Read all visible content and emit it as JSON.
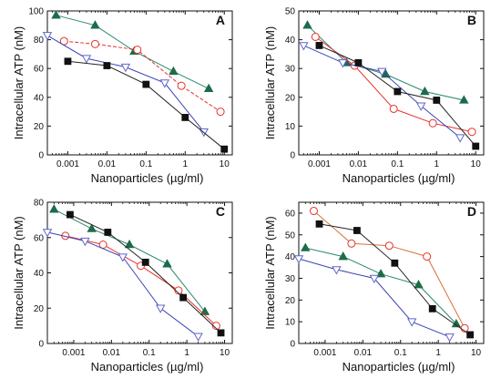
{
  "chart_data": [
    {
      "type": "line",
      "panel": "A",
      "xlabel": "Nanoparticles (µg/ml)",
      "ylabel": "Intracellular ATP (nM)",
      "xscale": "log",
      "xlim": [
        0.0003,
        16
      ],
      "ylim": [
        0,
        100
      ],
      "xticks": [
        0.001,
        0.01,
        0.1,
        1,
        10
      ],
      "xtick_labels": [
        "0.001",
        "0.01",
        "0.1",
        "1",
        "10"
      ],
      "yticks": [
        0,
        20,
        40,
        60,
        80,
        100
      ],
      "ytick_labels": [
        "0",
        "20",
        "40",
        "60",
        "80",
        "100"
      ],
      "series": [
        {
          "color": "#1e6b4a",
          "line": "#2a8a70",
          "marker": "triangle-up",
          "x": [
            0.0005,
            0.005,
            0.05,
            0.5,
            4
          ],
          "y": [
            97,
            90,
            72,
            58,
            46
          ]
        },
        {
          "color": "#e8322a",
          "line": "#e8322a",
          "dash": "4,2",
          "marker": "circle-open",
          "x": [
            0.0008,
            0.005,
            0.06,
            0.8,
            8
          ],
          "y": [
            79,
            77,
            73,
            48,
            30
          ]
        },
        {
          "color": "#5f66c9",
          "line": "#3b43b5",
          "marker": "triangle-down-open",
          "x": [
            0.0003,
            0.003,
            0.03,
            0.3,
            3
          ],
          "y": [
            83,
            67,
            61,
            50,
            16
          ]
        },
        {
          "color": "#111111",
          "line": "#222222",
          "marker": "square",
          "x": [
            0.001,
            0.01,
            0.1,
            1,
            10
          ],
          "y": [
            65,
            62,
            49,
            26,
            4
          ]
        }
      ]
    },
    {
      "type": "line",
      "panel": "B",
      "xlabel": "Nanoparticles (µg/ml)",
      "ylabel": "Intracellular ATP (nM)",
      "xscale": "log",
      "xlim": [
        0.0003,
        16
      ],
      "ylim": [
        0,
        50
      ],
      "xticks": [
        0.001,
        0.01,
        0.1,
        1,
        10
      ],
      "xtick_labels": [
        "0.001",
        "0.01",
        "0.1",
        "1",
        "10"
      ],
      "yticks": [
        0,
        10,
        20,
        30,
        40,
        50
      ],
      "ytick_labels": [
        "0",
        "10",
        "20",
        "30",
        "40",
        "50"
      ],
      "series": [
        {
          "color": "#1e6b4a",
          "line": "#2a8a70",
          "marker": "triangle-up",
          "x": [
            0.0005,
            0.005,
            0.05,
            0.5,
            5
          ],
          "y": [
            45,
            32,
            28,
            22,
            19
          ]
        },
        {
          "color": "#e8322a",
          "line": "#e8322a",
          "marker": "circle-open",
          "x": [
            0.0008,
            0.008,
            0.08,
            0.8,
            8
          ],
          "y": [
            41,
            31,
            16,
            11,
            8
          ]
        },
        {
          "color": "#5f66c9",
          "line": "#3b43b5",
          "marker": "triangle-down-open",
          "x": [
            0.0004,
            0.004,
            0.04,
            0.4,
            4
          ],
          "y": [
            38,
            32,
            29,
            17,
            6
          ]
        },
        {
          "color": "#111111",
          "line": "#222222",
          "marker": "square",
          "x": [
            0.001,
            0.01,
            0.1,
            1,
            10
          ],
          "y": [
            38,
            32,
            22,
            19,
            3
          ]
        }
      ]
    },
    {
      "type": "line",
      "panel": "C",
      "xlabel": "Nanoparticles (µg/ml)",
      "ylabel": "Intracellular ATP (nM)",
      "xscale": "log",
      "xlim": [
        0.0002,
        16
      ],
      "ylim": [
        0,
        80
      ],
      "xticks": [
        0.001,
        0.01,
        0.1,
        1,
        10
      ],
      "xtick_labels": [
        "0.001",
        "0.01",
        "0.1",
        "1",
        "10"
      ],
      "yticks": [
        0,
        20,
        40,
        60,
        80
      ],
      "ytick_labels": [
        "0",
        "20",
        "40",
        "60",
        "80"
      ],
      "series": [
        {
          "color": "#1e6b4a",
          "line": "#2a8a70",
          "marker": "triangle-up",
          "x": [
            0.0003,
            0.003,
            0.03,
            0.3,
            3
          ],
          "y": [
            76,
            65,
            56,
            45,
            18
          ]
        },
        {
          "color": "#e8322a",
          "line": "#e8322a",
          "marker": "circle-open",
          "x": [
            0.0006,
            0.006,
            0.06,
            0.6,
            6
          ],
          "y": [
            61,
            56,
            44,
            30,
            10
          ]
        },
        {
          "color": "#5f66c9",
          "line": "#3b43b5",
          "marker": "triangle-down-open",
          "x": [
            0.0002,
            0.002,
            0.02,
            0.2,
            2
          ],
          "y": [
            63,
            58,
            49,
            20,
            4
          ]
        },
        {
          "color": "#111111",
          "line": "#222222",
          "marker": "square",
          "x": [
            0.0008,
            0.008,
            0.08,
            0.8,
            8
          ],
          "y": [
            73,
            63,
            46,
            26,
            6
          ]
        }
      ]
    },
    {
      "type": "line",
      "panel": "D",
      "xlabel": "Nanoparticles (µg/ml)",
      "ylabel": "Intracellular ATP (nM)",
      "xscale": "log",
      "xlim": [
        0.0002,
        16
      ],
      "ylim": [
        0,
        65
      ],
      "xticks": [
        0.001,
        0.01,
        0.1,
        1,
        10
      ],
      "xtick_labels": [
        "0.001",
        "0.01",
        "0.1",
        "1",
        "10"
      ],
      "yticks": [
        0,
        10,
        20,
        30,
        40,
        50,
        60
      ],
      "ytick_labels": [
        "0",
        "10",
        "20",
        "30",
        "40",
        "50",
        "60"
      ],
      "series": [
        {
          "color": "#1e6b4a",
          "line": "#2a8a70",
          "marker": "triangle-up",
          "x": [
            0.0003,
            0.003,
            0.03,
            0.3,
            3
          ],
          "y": [
            44,
            40,
            32,
            27,
            9
          ]
        },
        {
          "color": "#e8322a",
          "line": "#d9703a",
          "marker": "circle-open",
          "x": [
            0.0005,
            0.005,
            0.05,
            0.5,
            5
          ],
          "y": [
            61,
            46,
            45,
            40,
            7
          ]
        },
        {
          "color": "#5f66c9",
          "line": "#3b43b5",
          "marker": "triangle-down-open",
          "x": [
            0.0002,
            0.002,
            0.02,
            0.2,
            2
          ],
          "y": [
            39,
            34,
            30,
            10,
            3
          ]
        },
        {
          "color": "#111111",
          "line": "#222222",
          "marker": "square",
          "x": [
            0.0007,
            0.007,
            0.07,
            0.7,
            7
          ],
          "y": [
            55,
            52,
            37,
            16,
            4
          ]
        }
      ]
    }
  ]
}
